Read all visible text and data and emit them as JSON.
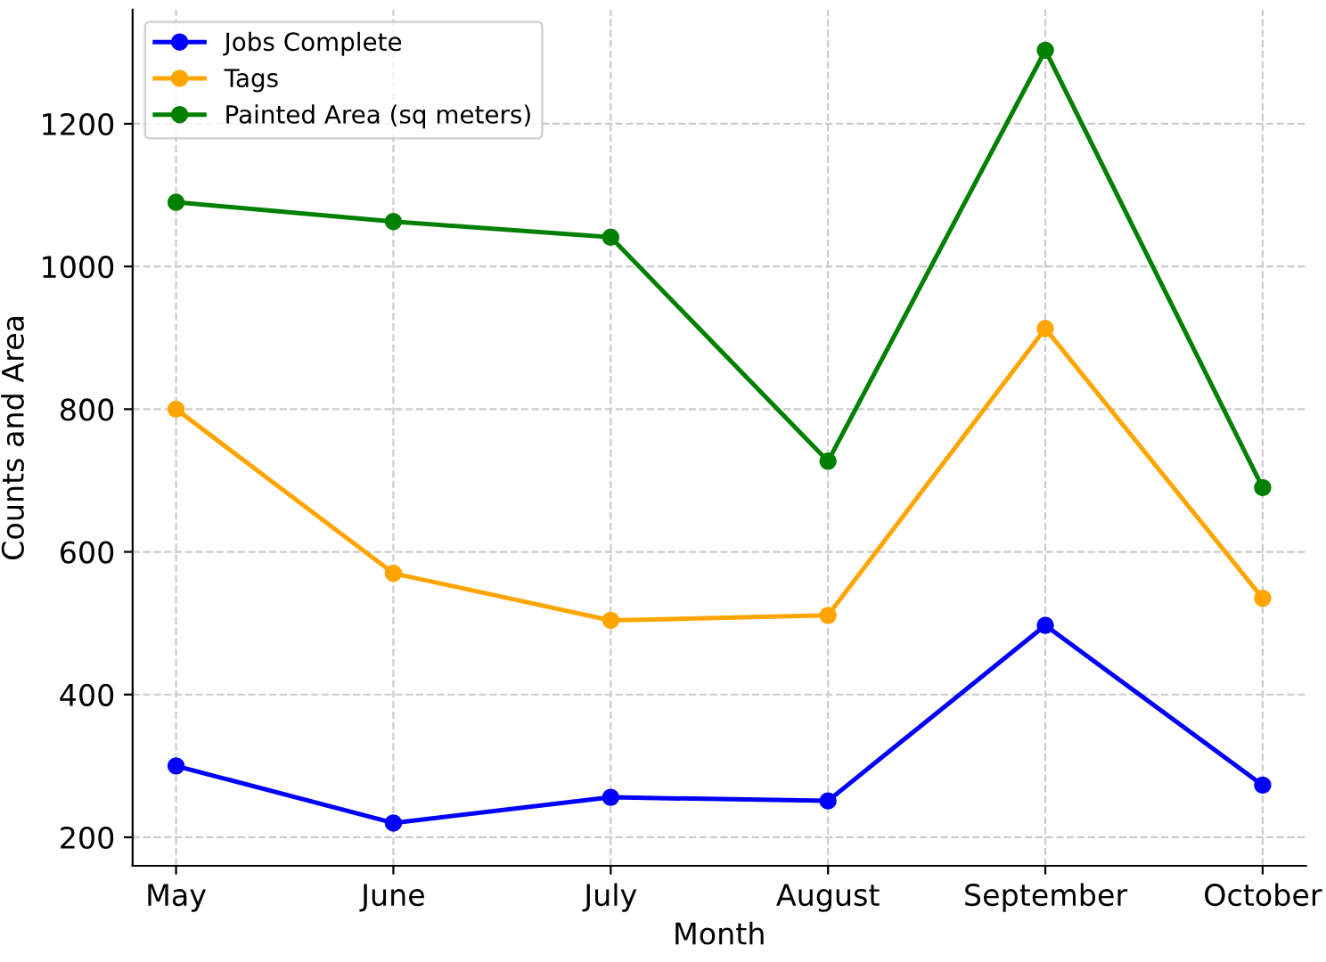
{
  "chart_data": {
    "type": "line",
    "xlabel": "Month",
    "ylabel": "Counts and Area",
    "categories": [
      "May",
      "June",
      "July",
      "August",
      "September",
      "October"
    ],
    "series": [
      {
        "name": "Jobs Complete",
        "color": "#0000ff",
        "values": [
          300,
          220,
          256,
          251,
          497,
          273
        ]
      },
      {
        "name": "Tags",
        "color": "#ffa500",
        "values": [
          800,
          570,
          504,
          511,
          913,
          535
        ]
      },
      {
        "name": "Painted Area (sq meters)",
        "color": "#008000",
        "values": [
          1090,
          1063,
          1041,
          727,
          1303,
          690
        ]
      }
    ],
    "ylim": [
      160,
      1360
    ],
    "yticks": [
      200,
      400,
      600,
      800,
      1000,
      1200
    ],
    "grid": true,
    "legend": "top left",
    "marker": "circle",
    "line_style": "solid"
  }
}
